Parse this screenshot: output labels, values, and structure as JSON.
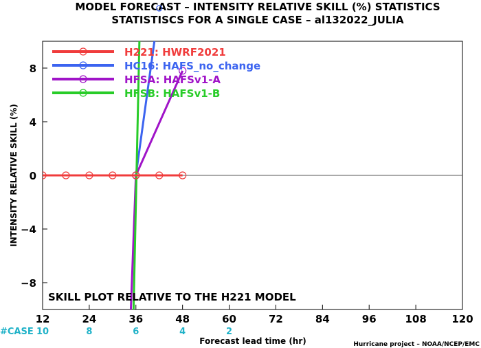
{
  "chart_data": {
    "type": "line",
    "title": "MODEL FORECAST – INTENSITY RELATIVE SKILL (%) STATISTICS",
    "subtitle": "STATISTISCS FOR A SINGLE CASE – al132022_JULIA",
    "ylabel": "INTENSITY RELATIVE SKILL (%)",
    "xlabel": "Forecast lead time (hr)",
    "annotation": "SKILL PLOT RELATIVE TO THE H221 MODEL",
    "credit": "Hurricane project – NOAA/NCEP/EMC",
    "xlim": [
      12,
      120
    ],
    "ylim": [
      -10,
      10
    ],
    "x_ticks": [
      12,
      24,
      36,
      48,
      60,
      72,
      84,
      96,
      108,
      120
    ],
    "y_ticks": [
      -8,
      -4,
      0,
      4,
      8
    ],
    "case_label": "#CASE",
    "case_counts": [
      {
        "x": 12,
        "count": "10"
      },
      {
        "x": 24,
        "count": "8"
      },
      {
        "x": 36,
        "count": "6"
      },
      {
        "x": 48,
        "count": "4"
      },
      {
        "x": 60,
        "count": "2"
      }
    ],
    "series": [
      {
        "name": "H221: HWRF2021",
        "color": "#f03c3c",
        "x": [
          12,
          18,
          24,
          30,
          36,
          42,
          48
        ],
        "values": [
          0,
          0,
          0,
          0,
          0,
          0,
          0
        ]
      },
      {
        "name": "HC16: HAFS_no_change",
        "color": "#3c64f0",
        "x": [
          36,
          42
        ],
        "values": [
          0,
          12.6
        ]
      },
      {
        "name": "HFSA: HAFSv1-A",
        "color": "#a014c8",
        "x": [
          34.7,
          36,
          48
        ],
        "values": [
          -10,
          0,
          7.8
        ]
      },
      {
        "name": "HFSB: HAFSv1-B",
        "color": "#28cc28",
        "x": [
          35.4,
          36.9
        ],
        "values": [
          -10,
          10
        ]
      }
    ]
  }
}
